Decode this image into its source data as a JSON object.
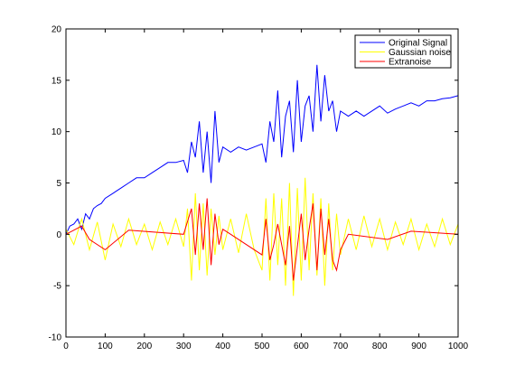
{
  "chart_data": {
    "type": "line",
    "title": "",
    "xlabel": "",
    "ylabel": "",
    "xlim": [
      0,
      1000
    ],
    "ylim": [
      -10,
      20
    ],
    "x_ticks": [
      0,
      100,
      200,
      300,
      400,
      500,
      600,
      700,
      800,
      900,
      1000
    ],
    "y_ticks": [
      -10,
      -5,
      0,
      5,
      10,
      15,
      20
    ],
    "grid": false,
    "legend_position": "top-right",
    "series": [
      {
        "name": "Original Signal",
        "color": "#0000ff",
        "x": [
          0,
          10,
          20,
          30,
          40,
          50,
          60,
          70,
          80,
          90,
          100,
          120,
          140,
          160,
          180,
          200,
          220,
          240,
          260,
          280,
          300,
          310,
          320,
          330,
          340,
          350,
          360,
          370,
          380,
          390,
          400,
          420,
          440,
          460,
          480,
          500,
          510,
          520,
          530,
          540,
          550,
          560,
          570,
          580,
          590,
          600,
          610,
          620,
          630,
          640,
          650,
          660,
          670,
          680,
          690,
          700,
          720,
          740,
          760,
          780,
          800,
          820,
          840,
          860,
          880,
          900,
          920,
          940,
          960,
          980,
          1000
        ],
        "y": [
          0.0,
          0.8,
          1.0,
          1.5,
          0.5,
          2.0,
          1.5,
          2.5,
          2.8,
          3.0,
          3.5,
          4.0,
          4.5,
          5.0,
          5.5,
          5.5,
          6.0,
          6.5,
          7.0,
          7.0,
          7.2,
          6.0,
          9.0,
          7.5,
          11.0,
          6.0,
          10.0,
          5.0,
          12.0,
          7.0,
          8.5,
          8.0,
          8.5,
          8.2,
          8.5,
          8.8,
          7.0,
          11.0,
          9.0,
          14.0,
          7.5,
          11.5,
          13.0,
          8.0,
          15.0,
          9.0,
          12.5,
          13.5,
          10.0,
          16.5,
          11.0,
          15.5,
          12.0,
          13.0,
          10.0,
          12.0,
          11.5,
          12.0,
          11.5,
          12.0,
          12.5,
          11.8,
          12.2,
          12.5,
          12.8,
          12.5,
          13.0,
          13.0,
          13.2,
          13.3,
          13.5
        ]
      },
      {
        "name": "Gaussian noise",
        "color": "#ffff00",
        "x": [
          0,
          20,
          40,
          60,
          80,
          100,
          120,
          140,
          160,
          180,
          200,
          220,
          240,
          260,
          280,
          300,
          310,
          320,
          330,
          340,
          350,
          360,
          370,
          380,
          390,
          400,
          420,
          440,
          460,
          480,
          500,
          510,
          520,
          530,
          540,
          550,
          560,
          570,
          580,
          590,
          600,
          610,
          620,
          630,
          640,
          650,
          660,
          670,
          680,
          690,
          700,
          720,
          740,
          760,
          780,
          800,
          820,
          840,
          860,
          880,
          900,
          920,
          940,
          960,
          980,
          1000
        ],
        "y": [
          0.5,
          -1.0,
          1.5,
          -1.5,
          1.2,
          -2.5,
          1.0,
          -1.2,
          1.5,
          -1.0,
          1.0,
          -1.5,
          1.2,
          -1.0,
          1.5,
          -1.2,
          2.5,
          -4.5,
          4.0,
          -3.5,
          3.0,
          -4.0,
          2.5,
          -2.0,
          1.8,
          -1.5,
          1.5,
          -1.8,
          2.0,
          -1.5,
          -3.5,
          3.5,
          -4.5,
          4.0,
          -3.0,
          3.5,
          -5.0,
          5.0,
          -6.0,
          4.5,
          -4.5,
          5.5,
          -3.5,
          4.0,
          -4.0,
          3.5,
          -5.0,
          3.0,
          -3.5,
          2.0,
          -2.0,
          1.5,
          -1.5,
          1.8,
          -1.2,
          1.5,
          -1.5,
          1.2,
          -1.0,
          1.5,
          -1.5,
          1.0,
          -1.2,
          1.5,
          -1.0,
          1.0
        ]
      },
      {
        "name": "Extranoise",
        "color": "#ff0000",
        "x": [
          0,
          40,
          60,
          100,
          160,
          300,
          320,
          330,
          340,
          350,
          360,
          370,
          380,
          390,
          400,
          420,
          500,
          510,
          520,
          530,
          540,
          560,
          570,
          580,
          600,
          610,
          620,
          630,
          640,
          650,
          660,
          670,
          680,
          690,
          700,
          720,
          820,
          880,
          1000
        ],
        "y": [
          0.0,
          0.8,
          -0.5,
          -1.5,
          0.4,
          0.0,
          2.5,
          -2.0,
          3.0,
          -1.5,
          3.5,
          -3.0,
          2.0,
          -1.0,
          0.5,
          0.0,
          -2.0,
          1.5,
          -2.5,
          -1.0,
          1.0,
          -3.0,
          0.8,
          -4.5,
          2.0,
          -2.5,
          0.5,
          3.0,
          -3.5,
          2.5,
          -2.0,
          1.5,
          -2.5,
          -3.5,
          -1.5,
          0.0,
          -0.5,
          0.3,
          0.0
        ]
      }
    ]
  }
}
